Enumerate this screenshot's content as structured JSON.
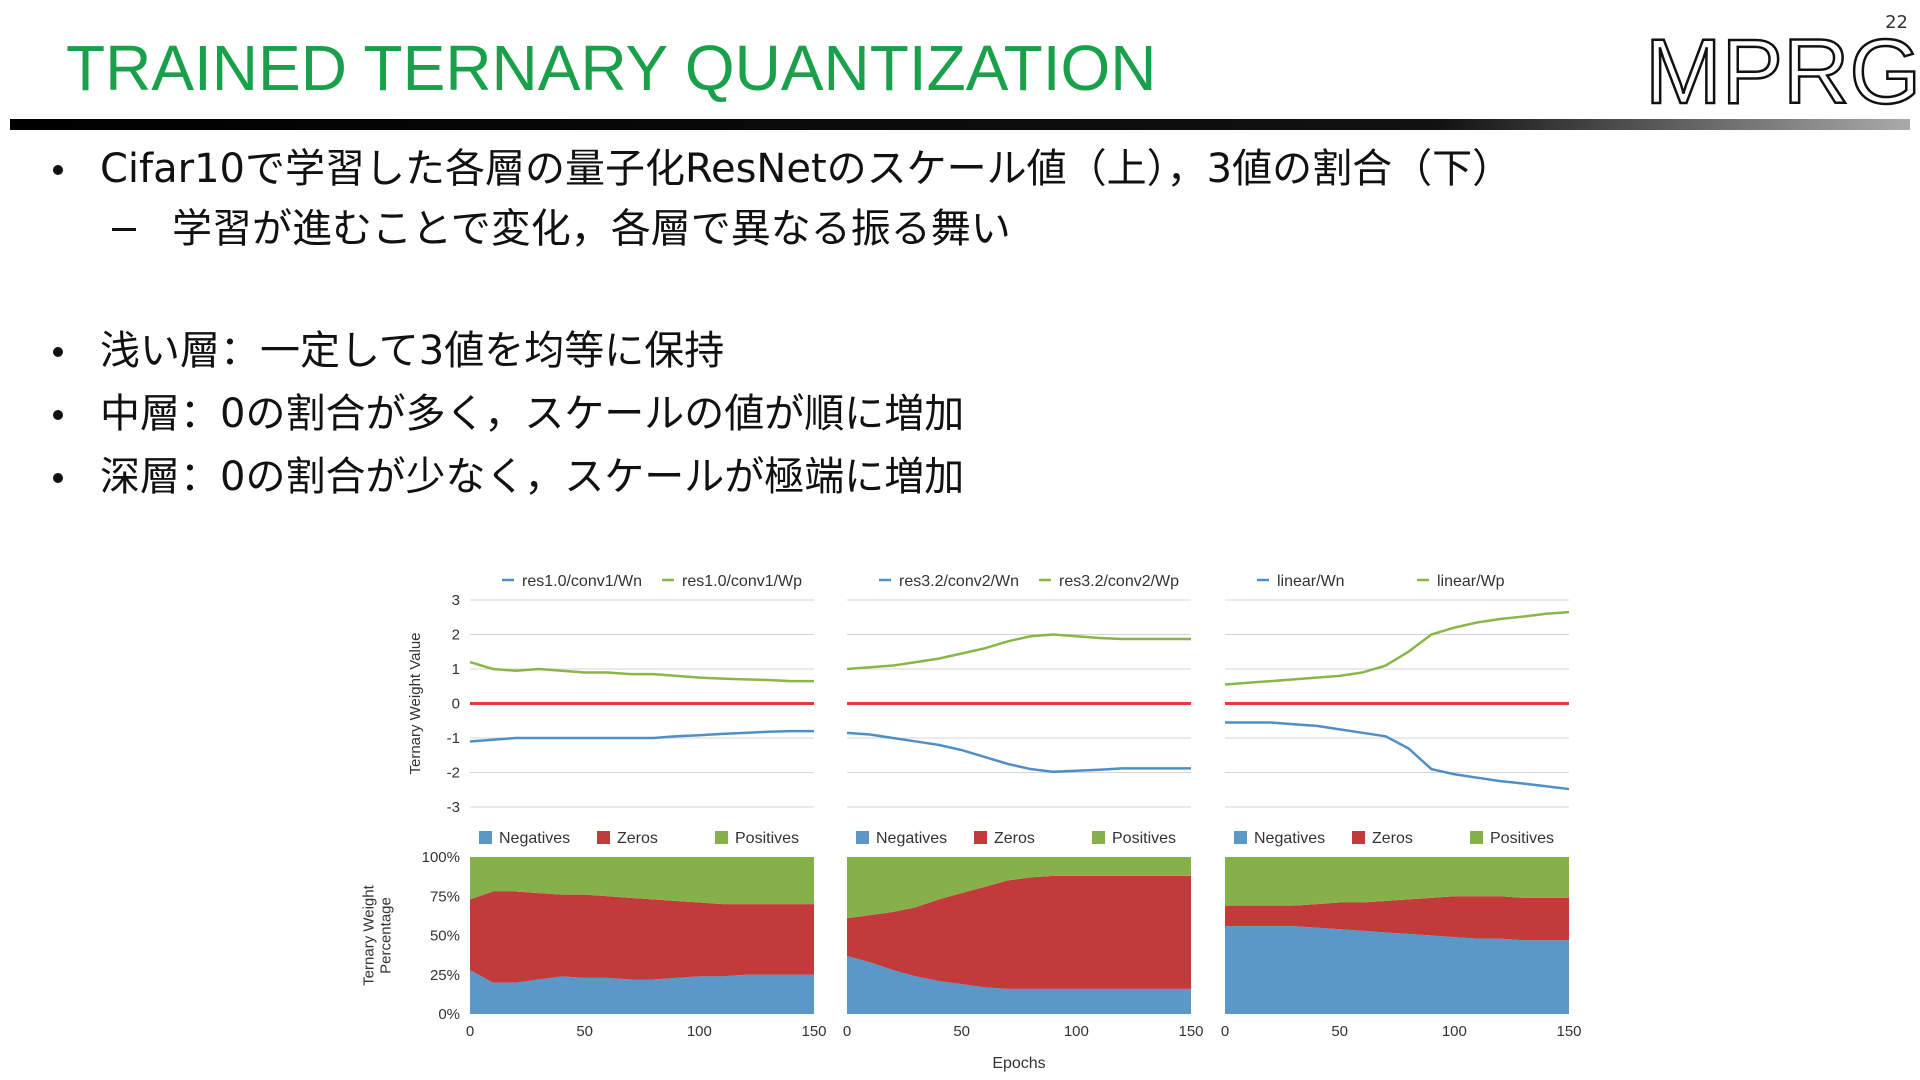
{
  "header": {
    "title": "TRAINED TERNARY QUANTIZATION",
    "page_number": "22",
    "logo": "MPRG"
  },
  "bullets": [
    {
      "text": "Cifar10で学習した各層の量子化ResNetのスケール値（上），3値の割合（下）",
      "level": 1
    },
    {
      "text": "学習が進むことで変化，各層で異なる振る舞い",
      "level": 2
    },
    {
      "text": "浅い層：一定して3値を均等に保持",
      "level": 1
    },
    {
      "text": "中層：0の割合が多く，スケールの値が順に増加",
      "level": 1
    },
    {
      "text": "深層：0の割合が少なく，スケールが極端に増加",
      "level": 1
    }
  ],
  "chart_data": [
    {
      "type": "line",
      "ylabel": [
        "Ternary Weight Value"
      ],
      "xlim": [
        0,
        150
      ],
      "ylim": [
        -3,
        3
      ],
      "yticks": [
        -3,
        -2,
        -1,
        0,
        1,
        2,
        3
      ],
      "grid": true,
      "zero_line_color": "#e03c31",
      "x": [
        0,
        10,
        20,
        30,
        40,
        50,
        60,
        70,
        80,
        90,
        100,
        110,
        120,
        130,
        140,
        150
      ],
      "series": [
        {
          "name": "res1.0/conv1/Wn",
          "color": "#4f8fc6",
          "values": [
            -1.1,
            -1.05,
            -1.0,
            -1.0,
            -1.0,
            -1.0,
            -1.0,
            -1.0,
            -1.0,
            -0.95,
            -0.92,
            -0.88,
            -0.85,
            -0.82,
            -0.8,
            -0.8
          ]
        },
        {
          "name": "res1.0/conv1/Wp",
          "color": "#8ab547",
          "values": [
            1.2,
            1.0,
            0.95,
            1.0,
            0.95,
            0.9,
            0.9,
            0.85,
            0.85,
            0.8,
            0.75,
            0.72,
            0.7,
            0.68,
            0.65,
            0.65
          ]
        }
      ]
    },
    {
      "type": "line",
      "xlim": [
        0,
        150
      ],
      "ylim": [
        -3,
        3
      ],
      "grid": true,
      "zero_line_color": "#e03c31",
      "x": [
        0,
        10,
        20,
        30,
        40,
        50,
        60,
        70,
        80,
        90,
        100,
        110,
        120,
        130,
        140,
        150
      ],
      "series": [
        {
          "name": "res3.2/conv2/Wn",
          "color": "#4f8fc6",
          "values": [
            -0.85,
            -0.9,
            -1.0,
            -1.1,
            -1.2,
            -1.35,
            -1.55,
            -1.75,
            -1.9,
            -1.98,
            -1.95,
            -1.92,
            -1.88,
            -1.88,
            -1.88,
            -1.88
          ]
        },
        {
          "name": "res3.2/conv2/Wp",
          "color": "#8ab547",
          "values": [
            1.0,
            1.05,
            1.1,
            1.2,
            1.3,
            1.45,
            1.6,
            1.8,
            1.95,
            2.0,
            1.95,
            1.9,
            1.87,
            1.87,
            1.87,
            1.87
          ]
        }
      ]
    },
    {
      "type": "line",
      "xlim": [
        0,
        150
      ],
      "ylim": [
        -3,
        3
      ],
      "grid": true,
      "zero_line_color": "#e03c31",
      "x": [
        0,
        10,
        20,
        30,
        40,
        50,
        60,
        70,
        80,
        90,
        100,
        110,
        120,
        130,
        140,
        150
      ],
      "series": [
        {
          "name": "linear/Wn",
          "color": "#4f8fc6",
          "values": [
            -0.55,
            -0.55,
            -0.55,
            -0.6,
            -0.65,
            -0.75,
            -0.85,
            -0.95,
            -1.3,
            -1.9,
            -2.05,
            -2.15,
            -2.25,
            -2.32,
            -2.4,
            -2.48
          ]
        },
        {
          "name": "linear/Wp",
          "color": "#8ab547",
          "values": [
            0.55,
            0.6,
            0.65,
            0.7,
            0.75,
            0.8,
            0.9,
            1.1,
            1.5,
            2.0,
            2.2,
            2.35,
            2.45,
            2.52,
            2.6,
            2.65
          ]
        }
      ]
    },
    {
      "type": "area",
      "ylabel": [
        "Ternary Weight",
        "Percentage"
      ],
      "xlim": [
        0,
        150
      ],
      "xticks": [
        0,
        50,
        100,
        150
      ],
      "ylim": [
        0,
        100
      ],
      "yticks": [
        {
          "value": 0,
          "label": "0%"
        },
        {
          "value": 25,
          "label": "25%"
        },
        {
          "value": 50,
          "label": "50%"
        },
        {
          "value": 75,
          "label": "75%"
        },
        {
          "value": 100,
          "label": "100%"
        }
      ],
      "x": [
        0,
        10,
        20,
        30,
        40,
        50,
        60,
        70,
        80,
        90,
        100,
        110,
        120,
        130,
        140,
        150
      ],
      "series": [
        {
          "name": "Negatives",
          "color": "#5b98c8",
          "values": [
            28,
            20,
            20,
            22,
            24,
            23,
            23,
            22,
            22,
            23,
            24,
            24,
            25,
            25,
            25,
            25
          ]
        },
        {
          "name": "Zeros",
          "color": "#c33a3a",
          "values": [
            45,
            58,
            58,
            55,
            52,
            53,
            52,
            52,
            51,
            49,
            47,
            46,
            45,
            45,
            45,
            45
          ]
        },
        {
          "name": "Positives",
          "color": "#86b04a",
          "values": [
            27,
            22,
            22,
            23,
            24,
            24,
            25,
            26,
            27,
            28,
            29,
            30,
            30,
            30,
            30,
            30
          ]
        }
      ]
    },
    {
      "type": "area",
      "xlabel": "Epochs",
      "xlim": [
        0,
        150
      ],
      "xticks": [
        0,
        50,
        100,
        150
      ],
      "ylim": [
        0,
        100
      ],
      "x": [
        0,
        10,
        20,
        30,
        40,
        50,
        60,
        70,
        80,
        90,
        100,
        110,
        120,
        130,
        140,
        150
      ],
      "series": [
        {
          "name": "Negatives",
          "color": "#5b98c8",
          "values": [
            37,
            33,
            28,
            24,
            21,
            19,
            17,
            16,
            16,
            16,
            16,
            16,
            16,
            16,
            16,
            16
          ]
        },
        {
          "name": "Zeros",
          "color": "#c33a3a",
          "values": [
            24,
            30,
            37,
            44,
            52,
            58,
            64,
            69,
            71,
            72,
            72,
            72,
            72,
            72,
            72,
            72
          ]
        },
        {
          "name": "Positives",
          "color": "#86b04a",
          "values": [
            39,
            37,
            35,
            32,
            27,
            23,
            19,
            15,
            13,
            12,
            12,
            12,
            12,
            12,
            12,
            12
          ]
        }
      ]
    },
    {
      "type": "area",
      "xlim": [
        0,
        150
      ],
      "xticks": [
        0,
        50,
        100,
        150
      ],
      "ylim": [
        0,
        100
      ],
      "x": [
        0,
        10,
        20,
        30,
        40,
        50,
        60,
        70,
        80,
        90,
        100,
        110,
        120,
        130,
        140,
        150
      ],
      "series": [
        {
          "name": "Negatives",
          "color": "#5b98c8",
          "values": [
            56,
            56,
            56,
            56,
            55,
            54,
            53,
            52,
            51,
            50,
            49,
            48,
            48,
            47,
            47,
            47
          ]
        },
        {
          "name": "Zeros",
          "color": "#c33a3a",
          "values": [
            13,
            13,
            13,
            13,
            15,
            17,
            18,
            20,
            22,
            24,
            26,
            27,
            27,
            27,
            27,
            27
          ]
        },
        {
          "name": "Positives",
          "color": "#86b04a",
          "values": [
            31,
            31,
            31,
            31,
            30,
            29,
            29,
            28,
            27,
            26,
            25,
            25,
            25,
            26,
            26,
            26
          ]
        }
      ]
    }
  ]
}
